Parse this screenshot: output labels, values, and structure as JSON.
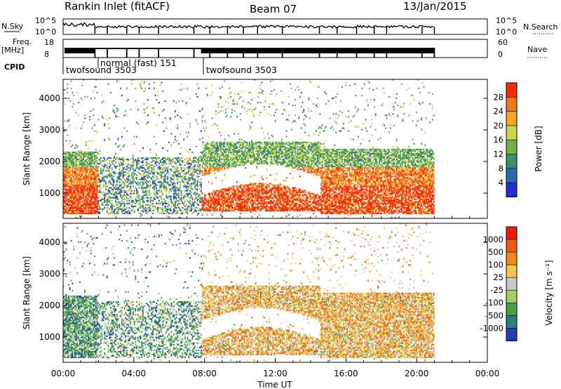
{
  "header": {
    "station": "Rankin Inlet (fitACF)",
    "beam": "Beam 07",
    "date": "13/Jan/2015"
  },
  "top_panels": {
    "nsky_label": "N.Sky",
    "nsky_ticks": [
      "10^5",
      "10^0"
    ],
    "nsearch_label": "N.Search",
    "nsearch_ticks": [
      "10^5",
      "10^0"
    ],
    "freq_label": "Freq.",
    "freq_unit": "[MHz]",
    "freq_ticks": [
      "18",
      "8"
    ],
    "nave_label": "Nave",
    "nave_ticks": [
      "60",
      "0"
    ],
    "cpid_label": "CPID",
    "cpid_segments": [
      {
        "label": "twofsound 3503",
        "start_h": 0.0
      },
      {
        "label": "normal (fast) 151",
        "start_h": 1.9
      },
      {
        "label": "twofsound 3503",
        "start_h": 7.8
      }
    ]
  },
  "chart_data": [
    {
      "type": "heatmap",
      "name": "power-panel",
      "ylabel": "Slant Range [km]",
      "ylim": [
        200,
        4600
      ],
      "yticks": [
        "1000",
        "2000",
        "3000",
        "4000"
      ],
      "xlim_hours": [
        0,
        24
      ],
      "colorbar": {
        "title": "Power [dB]",
        "ticks": [
          "4",
          "8",
          "12",
          "16",
          "20",
          "24",
          "28"
        ],
        "colors": [
          "#1f2ed8",
          "#2a6bb0",
          "#3f8f6a",
          "#6fb24a",
          "#c8d44a",
          "#f5a623",
          "#f07a1a",
          "#ff2a0a"
        ]
      },
      "coverage_end_h": 21.0
    },
    {
      "type": "heatmap",
      "name": "velocity-panel",
      "ylabel": "Slant Range [km]",
      "ylim": [
        200,
        4600
      ],
      "yticks": [
        "1000",
        "2000",
        "3000",
        "4000"
      ],
      "xlim_hours": [
        0,
        24
      ],
      "colorbar": {
        "title": "Velocity [m s⁻¹]",
        "ticks": [
          "1000",
          "500",
          "100",
          "25",
          "-25",
          "-100",
          "-500",
          "-1000"
        ],
        "colors": [
          "#1f3dbd",
          "#2d7f7a",
          "#4a9e4a",
          "#9fd06a",
          "#c9c9c9",
          "#f6c64a",
          "#f28a1a",
          "#f05a14",
          "#ee1a0a"
        ]
      },
      "coverage_end_h": 21.0
    }
  ],
  "x_axis": {
    "ticks": [
      "00:00",
      "04:00",
      "08:00",
      "12:00",
      "16:00",
      "20:00",
      "00:00"
    ],
    "label": "Time UT"
  }
}
